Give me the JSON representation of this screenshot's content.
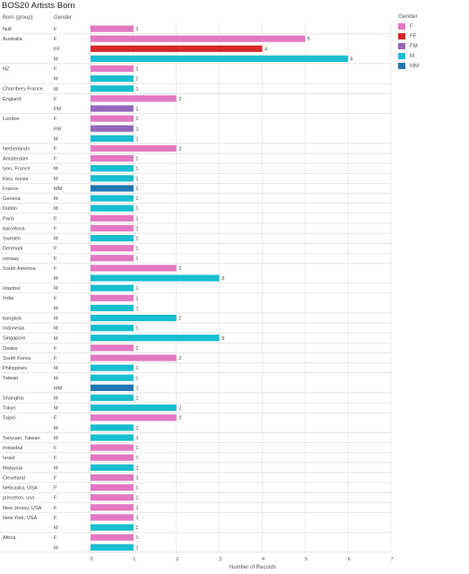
{
  "title": "BOS20 Artists Born",
  "headers": {
    "group": "Born (group)",
    "gender": "Gender"
  },
  "legend": {
    "title": "Gender",
    "items": [
      {
        "label": "F",
        "color": "#e377c2"
      },
      {
        "label": "FF",
        "color": "#d62728"
      },
      {
        "label": "FM",
        "color": "#9467bd"
      },
      {
        "label": "M",
        "color": "#17becf"
      },
      {
        "label": "MM",
        "color": "#1f77b4"
      }
    ]
  },
  "chart_data": {
    "type": "bar",
    "orientation": "horizontal",
    "title": "BOS20 Artists Born",
    "xlabel": "Number of Records",
    "xlim": [
      0,
      7
    ],
    "xticks": [
      "0",
      "1",
      "2",
      "3",
      "4",
      "5",
      "6",
      "7"
    ],
    "groups": [
      {
        "name": "Null",
        "rows": [
          {
            "gender": "F",
            "value": 1
          }
        ]
      },
      {
        "name": "Australia",
        "rows": [
          {
            "gender": "F",
            "value": 5
          },
          {
            "gender": "FF",
            "value": 4
          },
          {
            "gender": "M",
            "value": 6
          }
        ]
      },
      {
        "name": "NZ",
        "rows": [
          {
            "gender": "F",
            "value": 1
          },
          {
            "gender": "M",
            "value": 1
          }
        ]
      },
      {
        "name": "Chambery France",
        "rows": [
          {
            "gender": "M",
            "value": 1
          }
        ]
      },
      {
        "name": "England",
        "rows": [
          {
            "gender": "F",
            "value": 2
          },
          {
            "gender": "FM",
            "value": 1
          }
        ]
      },
      {
        "name": "London",
        "rows": [
          {
            "gender": "F",
            "value": 1
          },
          {
            "gender": "FM",
            "value": 1
          },
          {
            "gender": "M",
            "value": 1
          }
        ]
      },
      {
        "name": "Netherlands",
        "rows": [
          {
            "gender": "F",
            "value": 2
          }
        ]
      },
      {
        "name": "Amsterdam",
        "rows": [
          {
            "gender": "F",
            "value": 1
          }
        ]
      },
      {
        "name": "lyon, France",
        "rows": [
          {
            "gender": "M",
            "value": 1
          }
        ]
      },
      {
        "name": "Kiev, russia",
        "rows": [
          {
            "gender": "M",
            "value": 1
          }
        ]
      },
      {
        "name": "France",
        "rows": [
          {
            "gender": "MM",
            "value": 1
          }
        ]
      },
      {
        "name": "Geneva",
        "rows": [
          {
            "gender": "M",
            "value": 1
          }
        ]
      },
      {
        "name": "Dublin",
        "rows": [
          {
            "gender": "M",
            "value": 1
          }
        ]
      },
      {
        "name": "Paris",
        "rows": [
          {
            "gender": "F",
            "value": 1
          }
        ]
      },
      {
        "name": "barcelona",
        "rows": [
          {
            "gender": "F",
            "value": 1
          }
        ]
      },
      {
        "name": "Sweden",
        "rows": [
          {
            "gender": "M",
            "value": 1
          }
        ]
      },
      {
        "name": "Denmark",
        "rows": [
          {
            "gender": "F",
            "value": 1
          }
        ]
      },
      {
        "name": "norway",
        "rows": [
          {
            "gender": "F",
            "value": 1
          }
        ]
      },
      {
        "name": "South America",
        "rows": [
          {
            "gender": "F",
            "value": 2
          },
          {
            "gender": "M",
            "value": 3
          }
        ]
      },
      {
        "name": "Istanbul",
        "rows": [
          {
            "gender": "M",
            "value": 1
          }
        ]
      },
      {
        "name": "India",
        "rows": [
          {
            "gender": "F",
            "value": 1
          },
          {
            "gender": "M",
            "value": 1
          }
        ]
      },
      {
        "name": "bangkok",
        "rows": [
          {
            "gender": "M",
            "value": 2
          }
        ]
      },
      {
        "name": "Indonesia",
        "rows": [
          {
            "gender": "M",
            "value": 1
          }
        ]
      },
      {
        "name": "Singapore",
        "rows": [
          {
            "gender": "M",
            "value": 3
          }
        ]
      },
      {
        "name": "Osaka",
        "rows": [
          {
            "gender": "F",
            "value": 1
          }
        ]
      },
      {
        "name": "South Korea",
        "rows": [
          {
            "gender": "F",
            "value": 2
          }
        ]
      },
      {
        "name": "Philippines",
        "rows": [
          {
            "gender": "M",
            "value": 1
          }
        ]
      },
      {
        "name": "Taiwan",
        "rows": [
          {
            "gender": "M",
            "value": 1
          },
          {
            "gender": "MM",
            "value": 1
          }
        ]
      },
      {
        "name": "Shanghai",
        "rows": [
          {
            "gender": "M",
            "value": 1
          }
        ]
      },
      {
        "name": "Tokyo",
        "rows": [
          {
            "gender": "M",
            "value": 2
          }
        ]
      },
      {
        "name": "Taipei",
        "rows": [
          {
            "gender": "F",
            "value": 2
          },
          {
            "gender": "M",
            "value": 1
          }
        ]
      },
      {
        "name": "Taoyuan, Taiwan",
        "rows": [
          {
            "gender": "M",
            "value": 1
          }
        ]
      },
      {
        "name": "instanbul",
        "rows": [
          {
            "gender": "F",
            "value": 1
          }
        ]
      },
      {
        "name": "Israel",
        "rows": [
          {
            "gender": "F",
            "value": 1
          }
        ]
      },
      {
        "name": "Malaysia",
        "rows": [
          {
            "gender": "M",
            "value": 1
          }
        ]
      },
      {
        "name": "Cleveland",
        "rows": [
          {
            "gender": "F",
            "value": 1
          }
        ]
      },
      {
        "name": "Nebraska, USA",
        "rows": [
          {
            "gender": "F",
            "value": 1
          }
        ]
      },
      {
        "name": "princeton, usa",
        "rows": [
          {
            "gender": "F",
            "value": 1
          }
        ]
      },
      {
        "name": "New Jersey, USA",
        "rows": [
          {
            "gender": "F",
            "value": 1
          }
        ]
      },
      {
        "name": "New York, USA",
        "rows": [
          {
            "gender": "F",
            "value": 1
          },
          {
            "gender": "M",
            "value": 1
          }
        ]
      },
      {
        "name": "Africa",
        "rows": [
          {
            "gender": "F",
            "value": 1
          },
          {
            "gender": "M",
            "value": 1
          }
        ]
      }
    ]
  }
}
